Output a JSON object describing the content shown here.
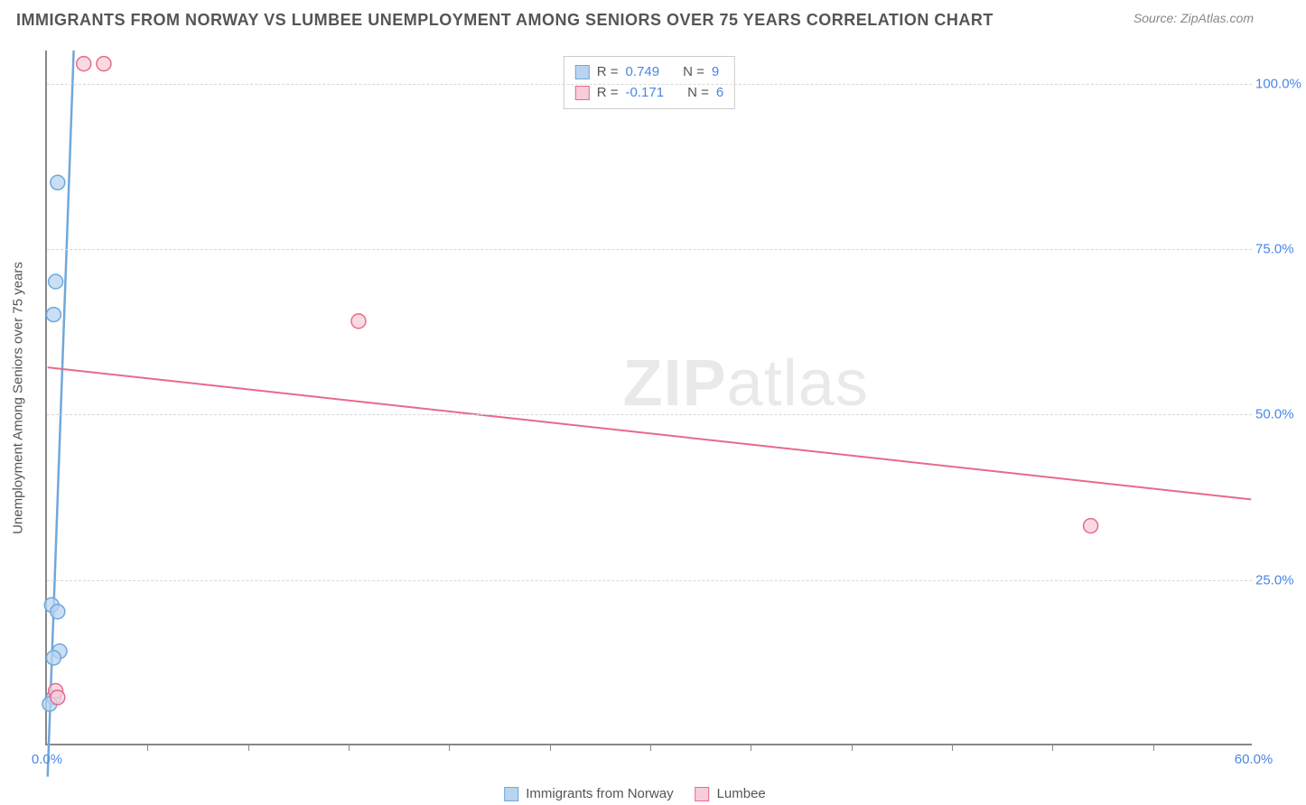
{
  "title": "IMMIGRANTS FROM NORWAY VS LUMBEE UNEMPLOYMENT AMONG SENIORS OVER 75 YEARS CORRELATION CHART",
  "source": "Source: ZipAtlas.com",
  "watermark_bold": "ZIP",
  "watermark_light": "atlas",
  "y_axis_label": "Unemployment Among Seniors over 75 years",
  "chart": {
    "type": "scatter",
    "xlim": [
      0,
      60
    ],
    "ylim": [
      0,
      105
    ],
    "x_ticks": [
      0,
      60
    ],
    "x_tick_labels": [
      "0.0%",
      "60.0%"
    ],
    "x_minor_ticks": [
      5,
      10,
      15,
      20,
      25,
      30,
      35,
      40,
      45,
      50,
      55
    ],
    "y_ticks": [
      25,
      50,
      75,
      100
    ],
    "y_tick_labels": [
      "25.0%",
      "50.0%",
      "75.0%",
      "100.0%"
    ],
    "grid_color": "#d8d8d8",
    "axis_color": "#888888",
    "background_color": "#ffffff",
    "series": [
      {
        "name": "Immigrants from Norway",
        "color_fill": "#b8d4f0",
        "color_stroke": "#6fa8dc",
        "marker_radius": 8,
        "R": "0.749",
        "N": "9",
        "points": [
          {
            "x": 0.5,
            "y": 85
          },
          {
            "x": 0.4,
            "y": 70
          },
          {
            "x": 0.3,
            "y": 65
          },
          {
            "x": 0.2,
            "y": 21
          },
          {
            "x": 0.5,
            "y": 20
          },
          {
            "x": 0.6,
            "y": 14
          },
          {
            "x": 0.3,
            "y": 13
          },
          {
            "x": 0.3,
            "y": 7
          },
          {
            "x": 0.1,
            "y": 6
          }
        ],
        "trend": {
          "x1": 0,
          "y1": -5,
          "x2": 1.3,
          "y2": 105,
          "stroke_width": 2.5
        }
      },
      {
        "name": "Lumbee",
        "color_fill": "#f7cdd9",
        "color_stroke": "#e86a8a",
        "marker_radius": 8,
        "R": "-0.171",
        "N": "6",
        "points": [
          {
            "x": 1.8,
            "y": 103
          },
          {
            "x": 2.8,
            "y": 103
          },
          {
            "x": 15.5,
            "y": 64
          },
          {
            "x": 52,
            "y": 33
          },
          {
            "x": 0.4,
            "y": 8
          },
          {
            "x": 0.5,
            "y": 7
          }
        ],
        "trend": {
          "x1": 0,
          "y1": 57,
          "x2": 60,
          "y2": 37,
          "stroke_width": 2
        }
      }
    ]
  },
  "legend_top": {
    "R_label": "R =",
    "N_label": "N ="
  },
  "legend_bottom_labels": [
    "Immigrants from Norway",
    "Lumbee"
  ]
}
